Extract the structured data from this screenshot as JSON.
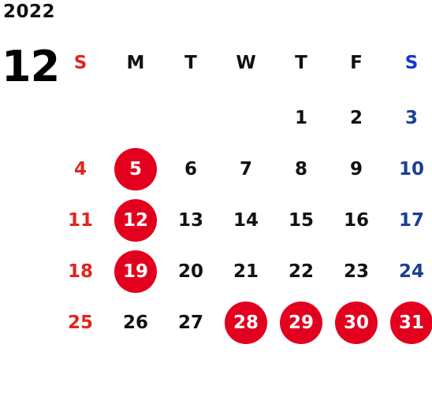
{
  "calendar": {
    "year": "2022",
    "month": "12",
    "weekdays": [
      "S",
      "M",
      "T",
      "W",
      "T",
      "F",
      "S"
    ],
    "weeks": [
      [
        "",
        "",
        "",
        "",
        "1",
        "2",
        "3"
      ],
      [
        "4",
        "5",
        "6",
        "7",
        "8",
        "9",
        "10"
      ],
      [
        "11",
        "12",
        "13",
        "14",
        "15",
        "16",
        "17"
      ],
      [
        "18",
        "19",
        "20",
        "21",
        "22",
        "23",
        "24"
      ],
      [
        "25",
        "26",
        "27",
        "28",
        "29",
        "30",
        "31"
      ]
    ],
    "highlighted_days": [
      "5",
      "12",
      "19",
      "28",
      "29",
      "30",
      "31"
    ],
    "colors": {
      "sunday": "#e0261c",
      "saturday": "#1a3f96",
      "saturday_header": "#1436d6",
      "weekday": "#111111",
      "highlight_fill": "#e2001e",
      "highlight_text": "#ffffff"
    }
  }
}
